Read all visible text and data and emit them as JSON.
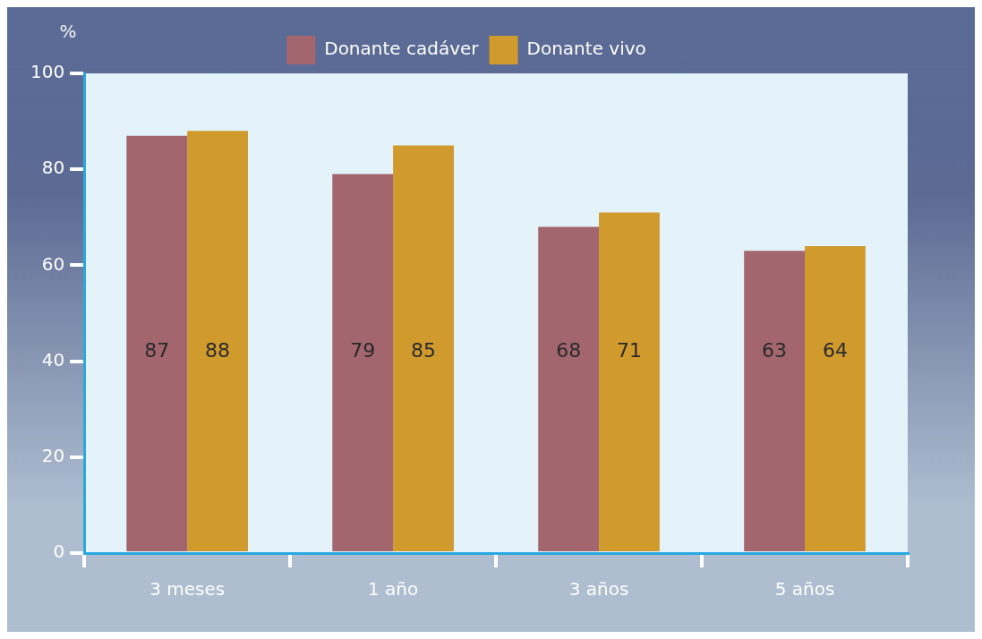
{
  "chart_data": {
    "type": "bar",
    "ylabel": "%",
    "categories": [
      "3 meses",
      "1 año",
      "3 años",
      "5 años"
    ],
    "series": [
      {
        "name": "Donante cadáver",
        "color": "#a3666f",
        "values": [
          87,
          79,
          68,
          63
        ]
      },
      {
        "name": "Donante vivo",
        "color": "#d09a2c",
        "values": [
          88,
          85,
          71,
          64
        ]
      }
    ],
    "ylim": [
      0,
      100
    ],
    "yticks": [
      0,
      20,
      40,
      60,
      80,
      100
    ],
    "data_labels": true,
    "legend": "top"
  }
}
